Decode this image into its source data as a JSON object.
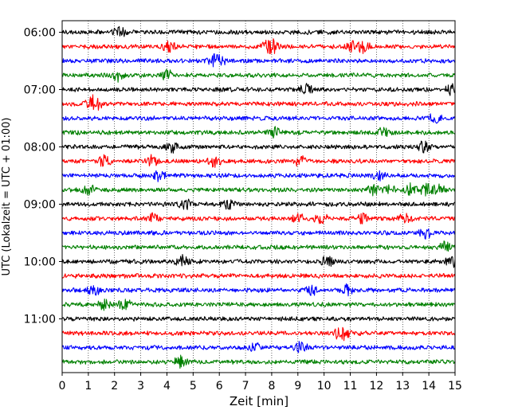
{
  "chart_data": {
    "type": "line",
    "title": "",
    "xlabel": "Zeit  [min]",
    "ylabel": "UTC (Lokalzeit = UTC + 01:00)",
    "xlim": [
      0,
      15
    ],
    "xticks": [
      0,
      1,
      2,
      3,
      4,
      5,
      6,
      7,
      8,
      9,
      10,
      11,
      12,
      13,
      14,
      15
    ],
    "x_tick_labels": [
      "0",
      "1",
      "2",
      "3",
      "4",
      "5",
      "6",
      "7",
      "8",
      "9",
      "10",
      "11",
      "12",
      "13",
      "14",
      "15"
    ],
    "y_tick_labels": [
      "06:00",
      "07:00",
      "08:00",
      "09:00",
      "10:00",
      "11:00"
    ],
    "grid": "vertical dotted",
    "trace_interval_min": 15,
    "trace_colors": [
      "#000000",
      "#ff0000",
      "#0000ff",
      "#008000"
    ],
    "traces": [
      {
        "start": "06:00",
        "color": "#000000",
        "events": [
          2.2
        ]
      },
      {
        "start": "06:15",
        "color": "#ff0000",
        "events": [
          4.1,
          7.8,
          8.1,
          11.1,
          11.5
        ]
      },
      {
        "start": "06:30",
        "color": "#0000ff",
        "events": [
          5.7,
          6.0
        ]
      },
      {
        "start": "06:45",
        "color": "#008000",
        "events": [
          2.1,
          4.0
        ]
      },
      {
        "start": "07:00",
        "color": "#000000",
        "events": [
          9.3,
          14.9
        ]
      },
      {
        "start": "07:15",
        "color": "#ff0000",
        "events": [
          1.1,
          1.3
        ]
      },
      {
        "start": "07:30",
        "color": "#0000ff",
        "events": [
          14.2
        ]
      },
      {
        "start": "07:45",
        "color": "#008000",
        "events": [
          8.1,
          12.3
        ]
      },
      {
        "start": "08:00",
        "color": "#000000",
        "events": [
          4.2,
          13.8
        ]
      },
      {
        "start": "08:15",
        "color": "#ff0000",
        "events": [
          1.6,
          3.4,
          5.8,
          9.1
        ]
      },
      {
        "start": "08:30",
        "color": "#0000ff",
        "events": [
          3.7,
          12.1
        ]
      },
      {
        "start": "08:45",
        "color": "#008000",
        "events": [
          1.0,
          11.9,
          12.5,
          13.3,
          13.9,
          14.4
        ]
      },
      {
        "start": "09:00",
        "color": "#000000",
        "events": [
          4.7,
          6.3
        ]
      },
      {
        "start": "09:15",
        "color": "#ff0000",
        "events": [
          3.5,
          9.0,
          9.9,
          11.5,
          13.1
        ]
      },
      {
        "start": "09:30",
        "color": "#0000ff",
        "events": [
          13.9
        ]
      },
      {
        "start": "09:45",
        "color": "#008000",
        "events": [
          14.6
        ]
      },
      {
        "start": "10:00",
        "color": "#000000",
        "events": [
          4.6,
          10.1,
          14.9
        ]
      },
      {
        "start": "10:15",
        "color": "#ff0000",
        "events": []
      },
      {
        "start": "10:30",
        "color": "#0000ff",
        "events": [
          1.2,
          9.5,
          10.9
        ]
      },
      {
        "start": "10:45",
        "color": "#008000",
        "events": [
          1.6,
          2.4
        ]
      },
      {
        "start": "11:00",
        "color": "#000000",
        "events": []
      },
      {
        "start": "11:15",
        "color": "#ff0000",
        "events": [
          10.5,
          10.8
        ]
      },
      {
        "start": "11:30",
        "color": "#0000ff",
        "events": [
          7.3,
          9.1
        ]
      },
      {
        "start": "11:45",
        "color": "#008000",
        "events": [
          4.5
        ]
      }
    ]
  }
}
